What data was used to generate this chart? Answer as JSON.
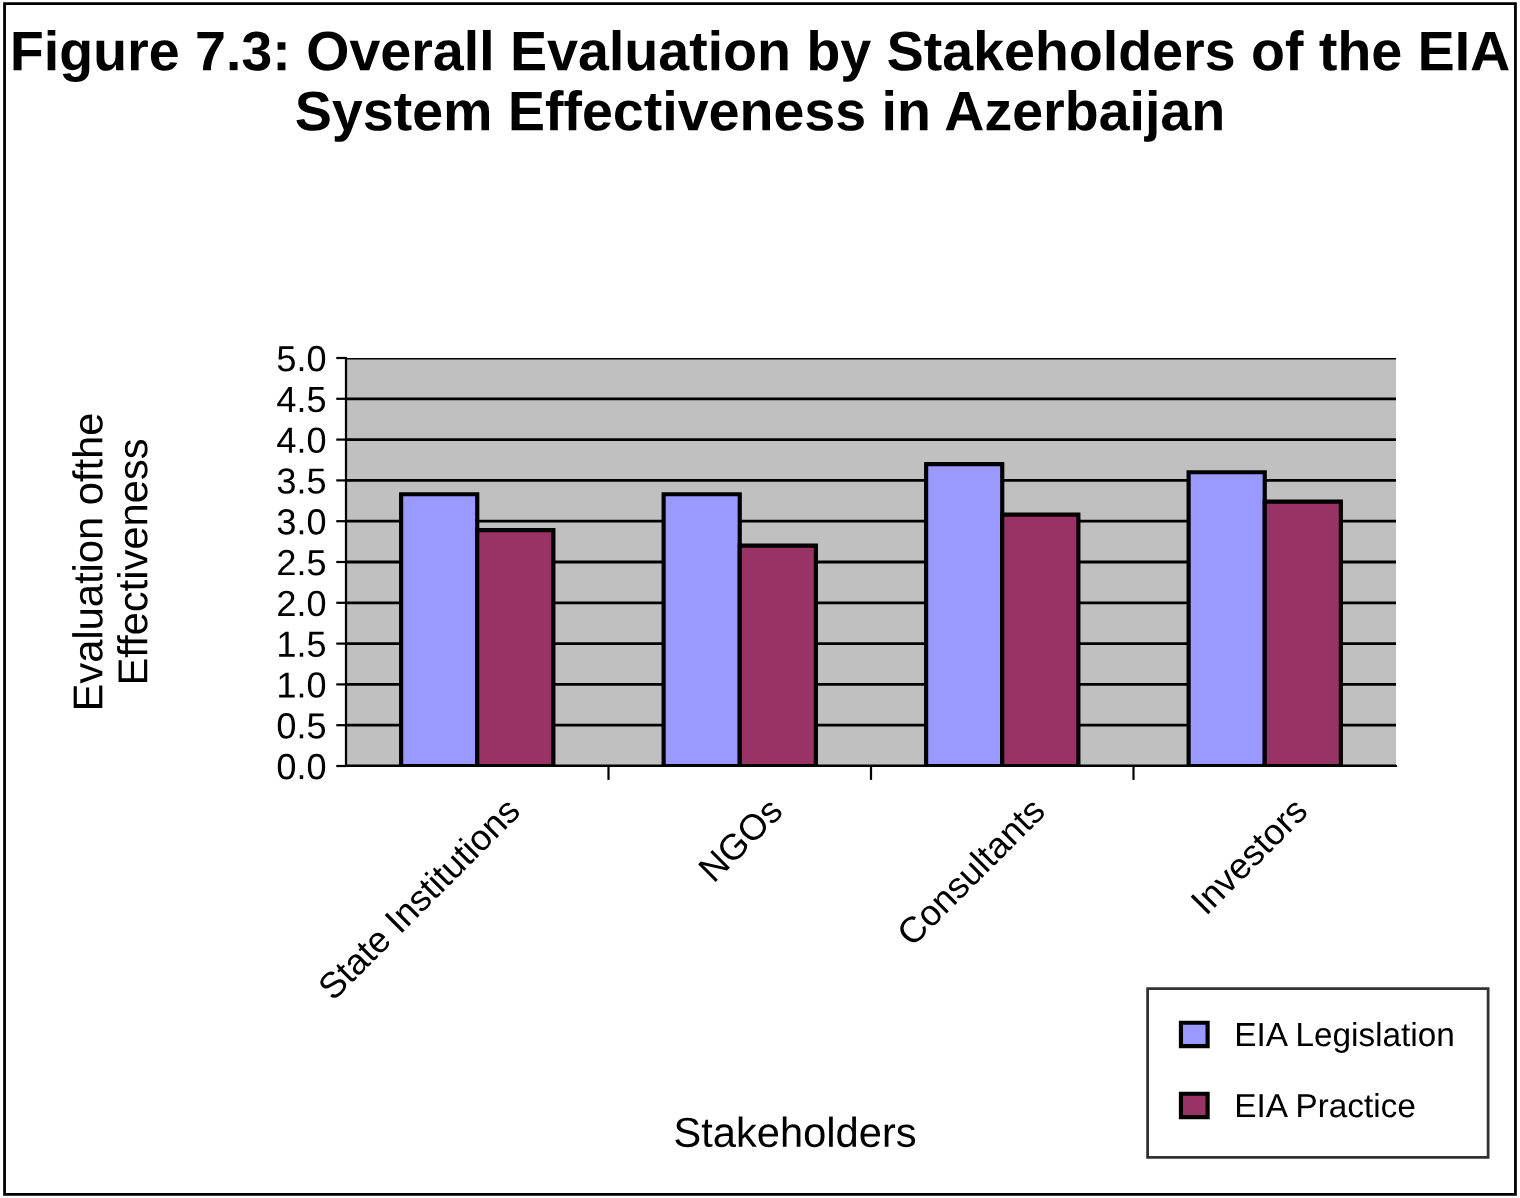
{
  "chart_data": {
    "type": "bar",
    "title": "Figure 7.3: Overall Evaluation by Stakeholders of the EIA System Effectiveness in Azerbaijan",
    "xlabel": "Stakeholders",
    "ylabel": "Evaluation ofthe\nEffectiveness",
    "categories": [
      "State Institutions",
      "NGOs",
      "Consultants",
      "Investors"
    ],
    "series": [
      {
        "name": "EIA Legislation",
        "color": "#9999ff",
        "values": [
          3.33,
          3.33,
          3.7,
          3.6
        ]
      },
      {
        "name": "EIA Practice",
        "color": "#993366",
        "values": [
          2.89,
          2.7,
          3.08,
          3.24
        ]
      }
    ],
    "ylim": [
      0,
      5
    ],
    "yticks": [
      {
        "value": 0,
        "label": "0.0"
      },
      {
        "value": 0.5,
        "label": "0.5"
      },
      {
        "value": 1,
        "label": "1.0"
      },
      {
        "value": 1.5,
        "label": "1.5"
      },
      {
        "value": 2,
        "label": "2.0"
      },
      {
        "value": 2.5,
        "label": "2.5"
      },
      {
        "value": 3,
        "label": "3.0"
      },
      {
        "value": 3.5,
        "label": "3.5"
      },
      {
        "value": 4,
        "label": "4.0"
      },
      {
        "value": 4.5,
        "label": "4.5"
      },
      {
        "value": 5,
        "label": "5.0"
      }
    ],
    "grid": "y",
    "legend": "bottom right"
  }
}
